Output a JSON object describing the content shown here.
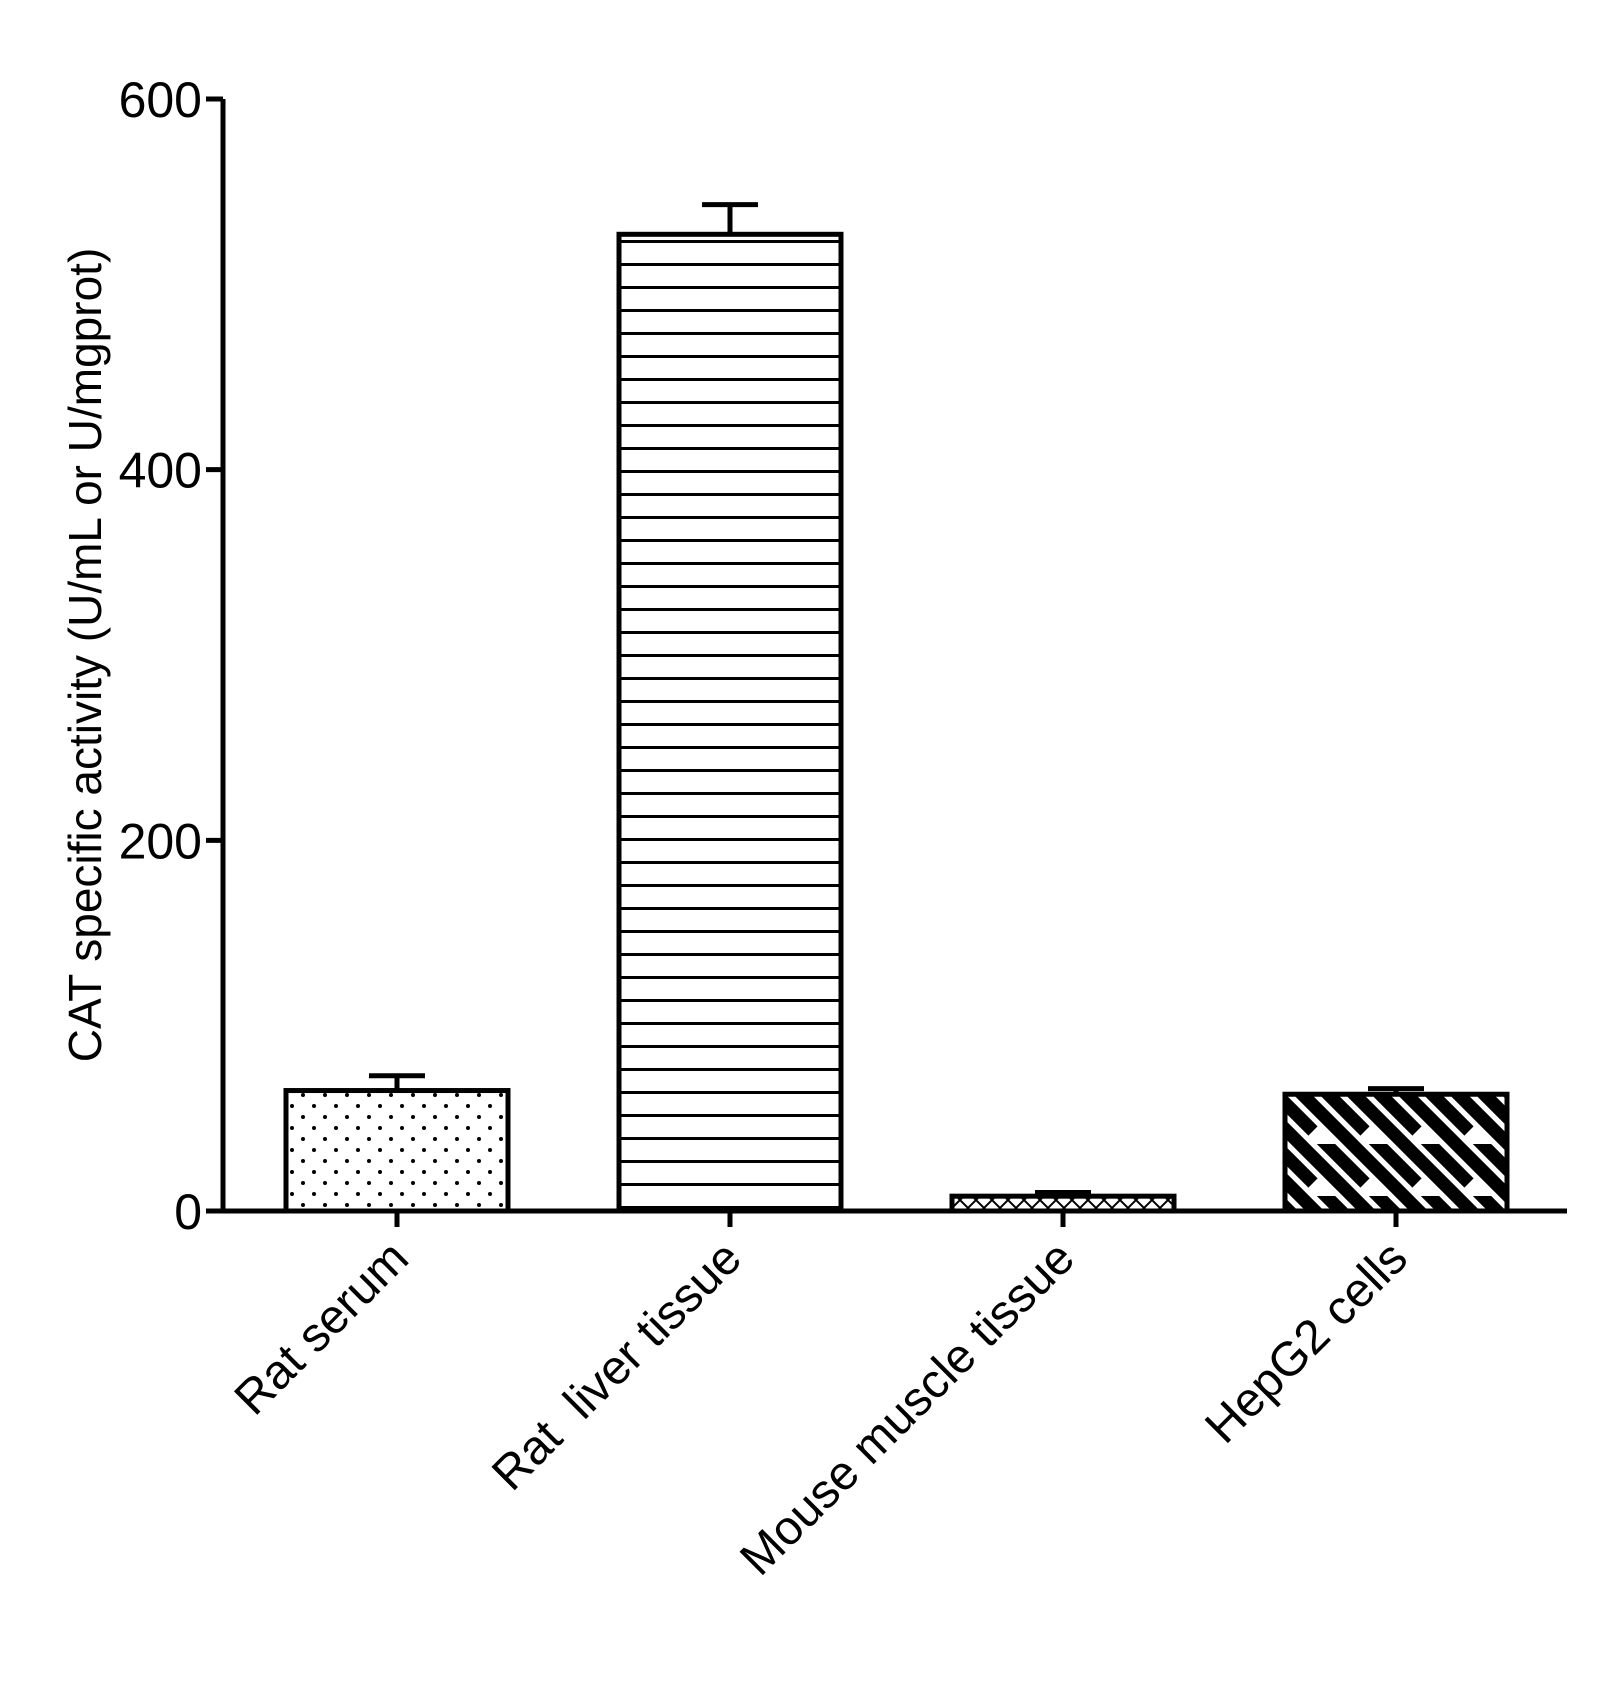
{
  "chart_data": {
    "type": "bar",
    "title": "",
    "xlabel": "",
    "ylabel": "CAT specific activity (U/mL or U/mgprot)",
    "ylim": [
      0,
      600
    ],
    "yticks": [
      "0",
      "200",
      "400",
      "600"
    ],
    "categories": [
      "Rat serum",
      "Rat  liver tissue",
      "Mouse muscle tissue",
      "HepG2 cells"
    ],
    "values": [
      65,
      527,
      8,
      63
    ],
    "errors": [
      8,
      16,
      2,
      3
    ],
    "patterns": [
      "dots",
      "horizontal-lines",
      "crosshatch",
      "diagonal-stripes"
    ],
    "grid": false,
    "legend": "none"
  }
}
